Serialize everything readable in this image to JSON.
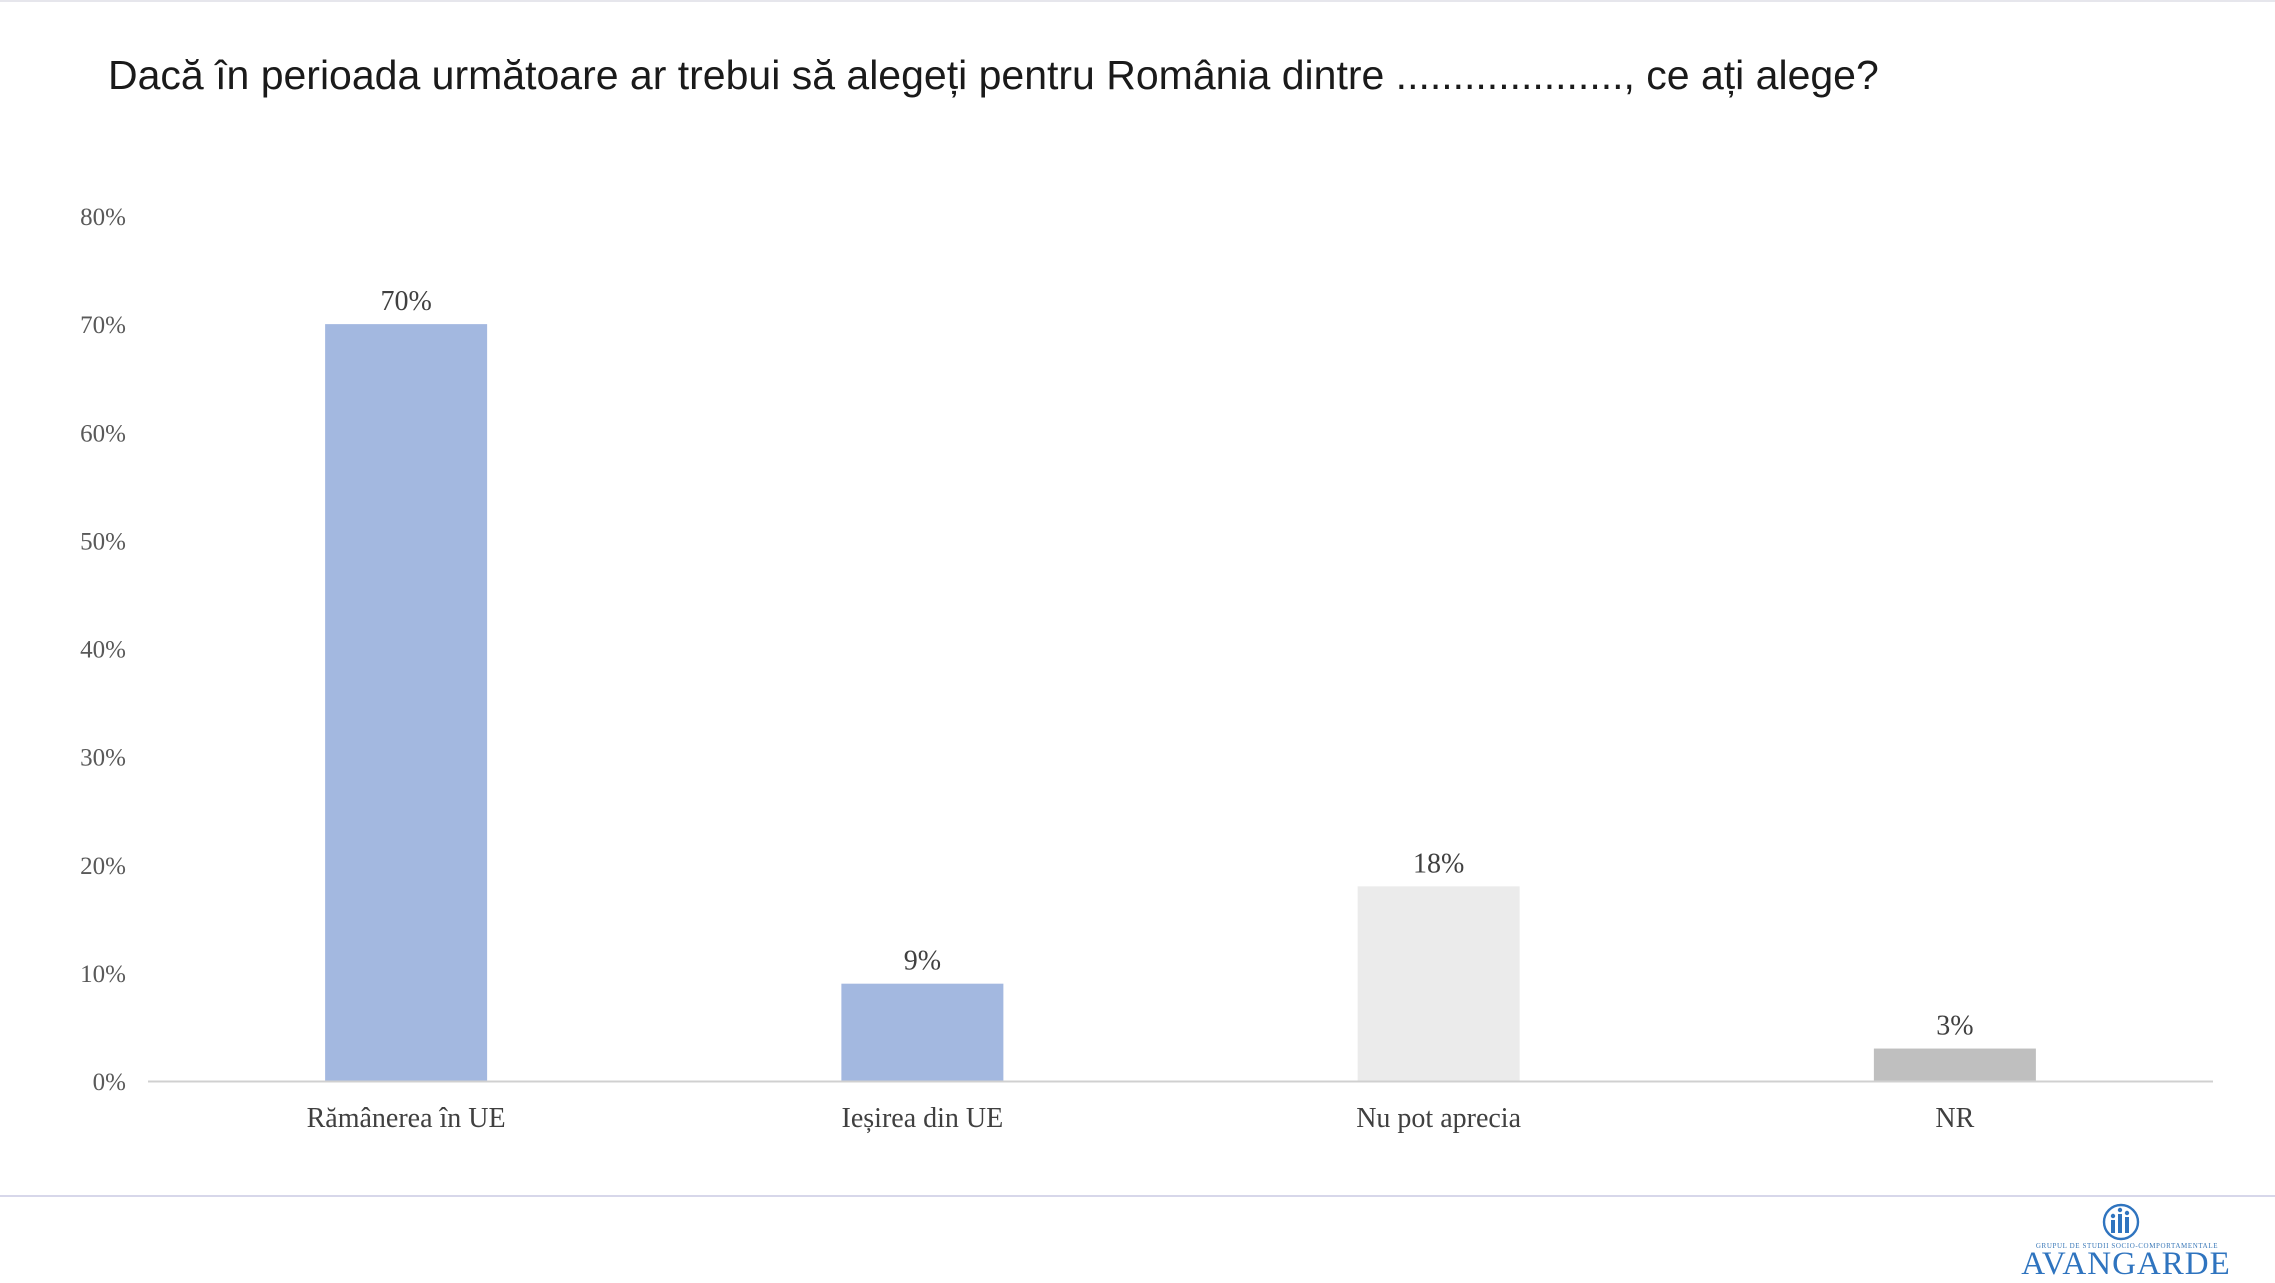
{
  "chart_data": {
    "type": "bar",
    "title": "Dacă în perioada următoare ar trebui să alegeți pentru România dintre ...................., ce ați alege?",
    "categories": [
      "Rămânerea în UE",
      "Ieșirea din UE",
      "Nu pot aprecia",
      "NR"
    ],
    "values": [
      70,
      9,
      18,
      3
    ],
    "value_labels": [
      "70%",
      "9%",
      "18%",
      "3%"
    ],
    "bar_colors": [
      "#a3b8e0",
      "#a3b8e0",
      "#ebebeb",
      "#bfbfbf"
    ],
    "ylim": [
      0,
      80
    ],
    "yticks": [
      0,
      10,
      20,
      30,
      40,
      50,
      60,
      70,
      80
    ],
    "ytick_labels": [
      "0%",
      "10%",
      "20%",
      "30%",
      "40%",
      "50%",
      "60%",
      "70%",
      "80%"
    ],
    "xlabel": "",
    "ylabel": "",
    "grid": false,
    "legend": "none"
  },
  "logo": {
    "tagline": "GRUPUL DE STUDII SOCIO-COMPORTAMENTALE",
    "name": "AVANGARDE",
    "color": "#2f74bf"
  }
}
